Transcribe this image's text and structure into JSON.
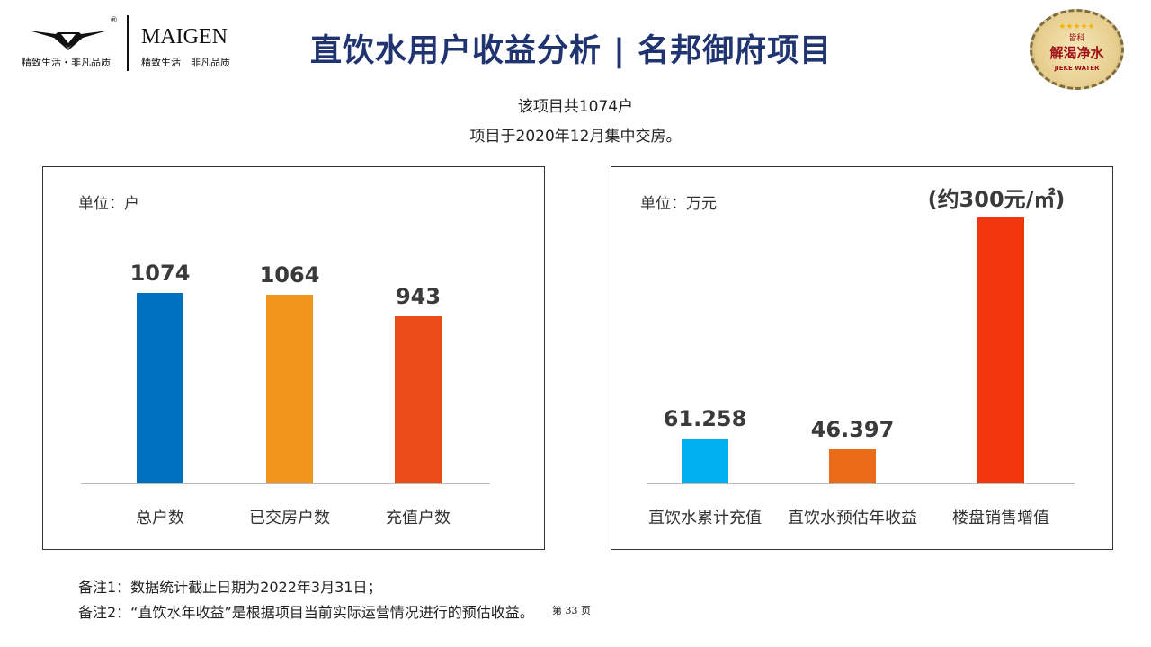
{
  "header": {
    "brand": "MAIGEN",
    "tagline_left": "精致生活・非凡品质",
    "tagline_right": "精致生活　非凡品质",
    "registered": "®",
    "title": "直饮水用户收益分析 | 名邦御府项目",
    "badge": {
      "top": "皆科",
      "main": "解渴净水",
      "en": "JIEKE WATER"
    }
  },
  "subtitle": [
    "该项目共1074户",
    "项目于2020年12月集中交房。"
  ],
  "chart_data": [
    {
      "type": "bar",
      "unit_label": "单位：户",
      "categories": [
        "总户数",
        "已交房户数",
        "充值户数"
      ],
      "values": [
        1074,
        1064,
        943
      ],
      "data_labels": [
        "1074",
        "1064",
        "943"
      ],
      "colors": [
        "#0070c0",
        "#f0961a",
        "#eb4b17"
      ],
      "ylim": [
        0,
        1300
      ],
      "grid": false
    },
    {
      "type": "bar",
      "unit_label": "单位：万元",
      "categories": [
        "直饮水累计充值",
        "直饮水预估年收益",
        "楼盘销售增值"
      ],
      "values": [
        61.258,
        46.397,
        null
      ],
      "data_labels": [
        "61.258",
        "46.397",
        "(约300元/㎡)"
      ],
      "colors": [
        "#00b0f0",
        "#e96a17",
        "#f2360c"
      ],
      "grid": false
    }
  ],
  "notes": [
    "备注1：数据统计截止日期为2022年3月31日；",
    "备注2：“直饮水年收益”是根据项目当前实际运营情况进行的预估收益。"
  ],
  "page": "第 33 页"
}
